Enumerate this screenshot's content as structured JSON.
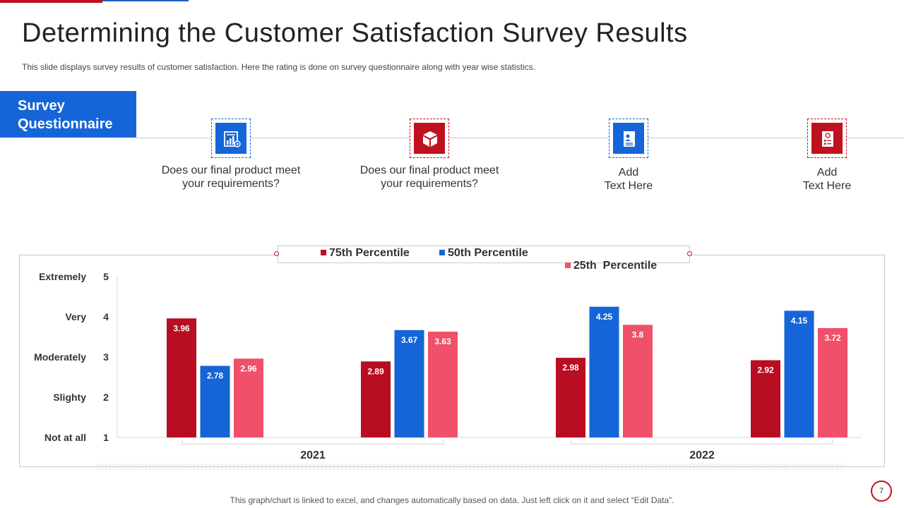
{
  "slide": {
    "title": "Determining the Customer Satisfaction Survey Results",
    "subtitle": "This slide displays survey results of customer satisfaction. Here the rating is done on survey questionnaire along with year wise statistics.",
    "footer_note": "This graph/chart is linked to excel,  and changes automatically based on data. Just left click on it and select “Edit Data”.",
    "page_number": "7"
  },
  "questionnaire": {
    "heading_line1": "Survey",
    "heading_line2": "Questionnaire",
    "items": [
      {
        "icon": "report-chart-icon",
        "color": "#1565d8",
        "line1": "Does our final product meet",
        "line2": "your requirements?"
      },
      {
        "icon": "product-box-icon",
        "color": "#c0111f",
        "line1": "Does our final product meet",
        "line2": "your requirements?"
      },
      {
        "icon": "document-person-icon",
        "color": "#1565d8",
        "line1": "Add",
        "line2": "Text Here"
      },
      {
        "icon": "checklist-icon",
        "color": "#c0111f",
        "line1": "Add",
        "line2": "Text Here"
      }
    ]
  },
  "chart_data": {
    "type": "bar",
    "title": "",
    "categories": [
      "2021",
      "2021",
      "2022",
      "2022"
    ],
    "groups": [
      {
        "label": "2021",
        "clusters": 2
      },
      {
        "label": "2022",
        "clusters": 2
      }
    ],
    "series": [
      {
        "name": "75th Percentile",
        "color": "#b90d22",
        "values": [
          3.96,
          2.89,
          2.98,
          2.92
        ]
      },
      {
        "name": "50th Percentile",
        "color": "#1565d8",
        "values": [
          2.78,
          3.67,
          4.25,
          4.15
        ]
      },
      {
        "name": "25th  Percentile",
        "color": "#f0506a",
        "values": [
          2.96,
          3.63,
          3.8,
          3.72
        ]
      }
    ],
    "ylim": [
      1,
      5
    ],
    "yticks": [
      {
        "value": 5,
        "label": "5",
        "name": "Extremely"
      },
      {
        "value": 4,
        "label": "4",
        "name": "Very"
      },
      {
        "value": 3,
        "label": "3",
        "name": "Moderately"
      },
      {
        "value": 2,
        "label": "2",
        "name": "Slighty"
      },
      {
        "value": 1,
        "label": "1",
        "name": "Not at all"
      }
    ],
    "legend_position": "top-center"
  }
}
